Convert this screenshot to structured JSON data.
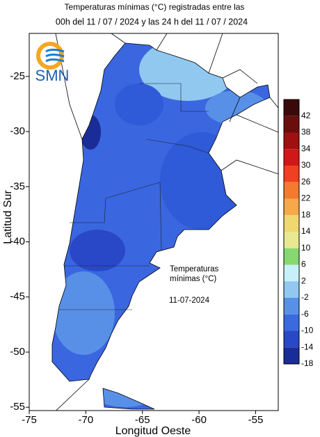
{
  "title": [
    "Temperaturas mínimas (°C) registradas entre las",
    "00h del 11 / 07 / 2024 y las 24 h del 11 / 07 / 2024"
  ],
  "logo": "SMN",
  "annotation": {
    "lines": [
      "Temperaturas",
      "mínimas (°C)"
    ],
    "date": "11-07-2024"
  },
  "map": {
    "xlabel": "Longitud Oeste",
    "ylabel": "Latitud Sur",
    "xlim": [
      -75,
      -53
    ],
    "ylim": [
      -55.3,
      -21.1
    ],
    "xticks": [
      -75,
      -70,
      -65,
      -60,
      -55
    ],
    "yticks": [
      -25,
      -30,
      -35,
      -40,
      -45,
      -50,
      -55
    ]
  },
  "colorbar": {
    "ticks": [
      42,
      38,
      34,
      30,
      26,
      22,
      18,
      14,
      10,
      6,
      2,
      -2,
      -6,
      -10,
      -14,
      -18
    ],
    "colors": [
      "#3a0a0a",
      "#6b0d0d",
      "#a01010",
      "#d01818",
      "#f04020",
      "#f57a30",
      "#f8a848",
      "#f0d870",
      "#e8e890",
      "#88d870",
      "#c8f0f8",
      "#90c8f0",
      "#5890e8",
      "#3a6ae0",
      "#2848c8",
      "#1a2c98"
    ]
  }
}
